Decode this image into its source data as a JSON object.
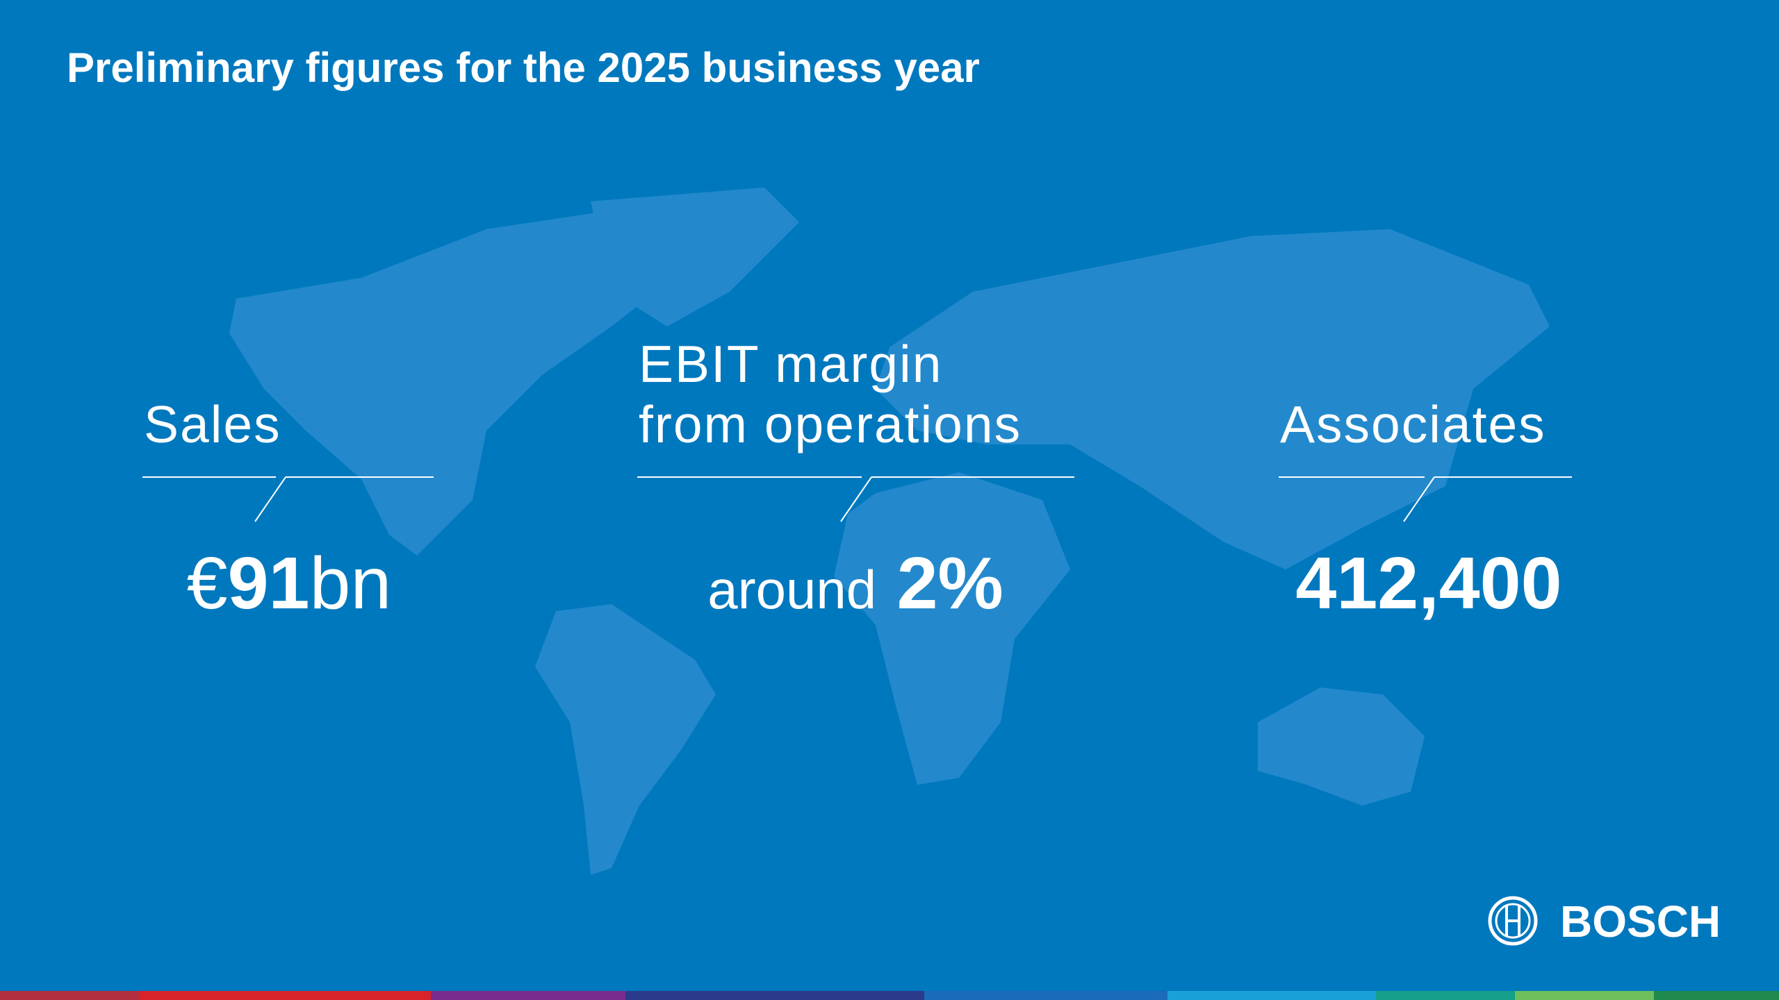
{
  "title": "Preliminary figures for the 2025 business year",
  "metrics": [
    {
      "label": [
        "Sales"
      ],
      "value": {
        "prefix": "€",
        "number": "91",
        "suffix": "bn"
      }
    },
    {
      "label": [
        "EBIT margin",
        "from operations"
      ],
      "value": {
        "prefix": "around",
        "number": "2%"
      }
    },
    {
      "label": [
        "Associates"
      ],
      "value": {
        "number": "412,400"
      }
    }
  ],
  "logo": "BOSCH"
}
